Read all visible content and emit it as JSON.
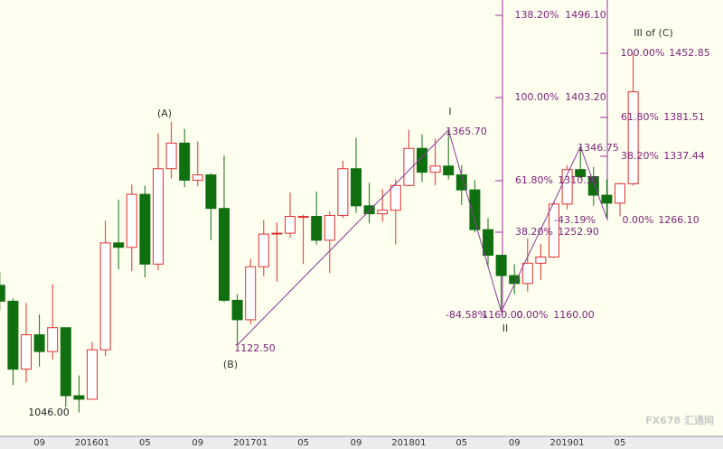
{
  "chart_data": {
    "type": "candlestick",
    "categories": [
      null,
      null,
      null,
      "09",
      null,
      null,
      null,
      "201601",
      null,
      null,
      null,
      "05",
      null,
      null,
      null,
      "09",
      null,
      null,
      null,
      "201701",
      null,
      null,
      null,
      "05",
      null,
      null,
      null,
      "09",
      null,
      null,
      null,
      "201801",
      null,
      null,
      null,
      "05",
      null,
      null,
      null,
      "09",
      null,
      null,
      null,
      "201901",
      null,
      null,
      null,
      "05",
      null
    ],
    "open": [
      1190,
      1172,
      1095,
      1134,
      1115,
      1142,
      1065,
      1061,
      1117,
      1238,
      1233,
      1293,
      1214,
      1322,
      1351,
      1309,
      1315,
      1277,
      1173,
      1151,
      1211,
      1248,
      1249,
      1268,
      1268,
      1241,
      1269,
      1322,
      1280,
      1271,
      1275,
      1303,
      1345,
      1318,
      1325,
      1315,
      1298,
      1253,
      1224,
      1201,
      1192,
      1215,
      1222,
      1282,
      1321,
      1313,
      1292,
      1283,
      1305
    ],
    "high": [
      1205,
      1175,
      1170,
      1157,
      1191,
      1142,
      1088,
      1126,
      1263,
      1287,
      1304,
      1303,
      1362,
      1375,
      1367,
      1353,
      1317,
      1337,
      1180,
      1220,
      1264,
      1261,
      1295,
      1270,
      1296,
      1274,
      1331,
      1357,
      1306,
      1299,
      1310,
      1366,
      1361,
      1356,
      1365.7,
      1326,
      1309,
      1266,
      1221,
      1214,
      1243,
      1237,
      1285,
      1326,
      1346.75,
      1324,
      1310,
      1306,
      1452.85
    ],
    "low": [
      1162,
      1077,
      1080,
      1098,
      1106,
      1052,
      1046,
      1062,
      1110,
      1208,
      1206,
      1199,
      1207,
      1311,
      1301,
      1302,
      1241,
      1171,
      1122.5,
      1146,
      1200,
      1194,
      1244,
      1214,
      1236,
      1204,
      1266,
      1272,
      1260,
      1262,
      1236,
      1302,
      1307,
      1303,
      1310,
      1281,
      1250,
      1211,
      1160,
      1180,
      1183,
      1196,
      1221,
      1276,
      1311,
      1280,
      1266.1,
      1268,
      1303
    ],
    "close": [
      1172,
      1095,
      1134,
      1115,
      1142,
      1065,
      1061,
      1117,
      1238,
      1233,
      1293,
      1214,
      1322,
      1351,
      1309,
      1315,
      1277,
      1173,
      1151,
      1211,
      1248,
      1249,
      1268,
      1268,
      1241,
      1269,
      1322,
      1280,
      1271,
      1275,
      1303,
      1345,
      1318,
      1325,
      1315,
      1298,
      1253,
      1224,
      1201,
      1192,
      1215,
      1222,
      1282,
      1321,
      1313,
      1292,
      1283,
      1305,
      1409
    ],
    "up_color": "#e03030",
    "down_color": "#107010",
    "ylim": [
      1020,
      1513
    ],
    "annotations": [
      "(A)",
      "(B)",
      "I",
      "II",
      "III of (C)",
      "1046.00",
      "1122.50",
      "1365.70",
      "1346.75",
      "-84.58%",
      "1160.00",
      "138.20%",
      "1496.10",
      "100.00%",
      "1403.20",
      "61.80%",
      "1310.30",
      "38.20%",
      "1252.90",
      "0.00%",
      "1160.00",
      "-43.19%",
      "100.00%",
      "1452.85",
      "61.80%",
      "1381.51",
      "38.20%",
      "1337.44",
      "0.00%",
      "1266.10"
    ],
    "watermark": "FX678 汇通网"
  }
}
